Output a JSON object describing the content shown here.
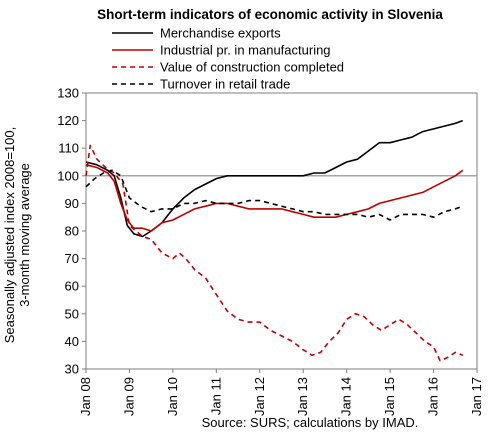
{
  "chart_data": {
    "type": "line",
    "title": "Short-term indicators of economic activity in Slovenia",
    "ylabel": "Seasonally adjusted index 2008=100, 3-month moving average",
    "ylabel_lines": [
      "Seasonally adjusted index 2008=100,",
      "3-month moving average"
    ],
    "xlabel": "",
    "source": "Source: SURS; calculations by IMAD.",
    "ylim": [
      30,
      130
    ],
    "yticks": [
      30,
      40,
      50,
      60,
      70,
      80,
      90,
      100,
      110,
      120,
      130
    ],
    "xlim": [
      2008.0,
      2017.0
    ],
    "xticks": [
      2008,
      2009,
      2010,
      2011,
      2012,
      2013,
      2014,
      2015,
      2016,
      2017
    ],
    "xtick_labels": [
      "Jan 08",
      "Jan 09",
      "Jan 10",
      "Jan 11",
      "Jan 12",
      "Jan 13",
      "Jan 14",
      "Jan 15",
      "Jan 16",
      "Jan 17"
    ],
    "reference_line": 100,
    "grid": false,
    "legend_position": "top",
    "series": [
      {
        "name": "Merchandise exports",
        "color": "#000000",
        "style": "solid",
        "x": [
          2008.0,
          2008.25,
          2008.5,
          2008.65,
          2008.8,
          2008.95,
          2009.1,
          2009.3,
          2009.5,
          2009.75,
          2010.0,
          2010.25,
          2010.5,
          2010.75,
          2011.0,
          2011.25,
          2011.5,
          2011.75,
          2012.0,
          2012.25,
          2012.5,
          2012.75,
          2013.0,
          2013.25,
          2013.5,
          2013.75,
          2014.0,
          2014.25,
          2014.5,
          2014.75,
          2015.0,
          2015.25,
          2015.5,
          2015.75,
          2016.0,
          2016.25,
          2016.5,
          2016.67
        ],
        "y": [
          105,
          104,
          102,
          100,
          92,
          82,
          79,
          78,
          80,
          83,
          88,
          92,
          95,
          97,
          99,
          100,
          100,
          100,
          100,
          100,
          100,
          100,
          100,
          101,
          101,
          103,
          105,
          106,
          109,
          112,
          112,
          113,
          114,
          116,
          117,
          118,
          119,
          120
        ]
      },
      {
        "name": "Industrial pr. in manufacturing",
        "color": "#c00000",
        "style": "solid",
        "x": [
          2008.0,
          2008.25,
          2008.5,
          2008.65,
          2008.8,
          2008.95,
          2009.1,
          2009.3,
          2009.5,
          2009.75,
          2010.0,
          2010.25,
          2010.5,
          2010.75,
          2011.0,
          2011.25,
          2011.5,
          2011.75,
          2012.0,
          2012.25,
          2012.5,
          2012.75,
          2013.0,
          2013.25,
          2013.5,
          2013.75,
          2014.0,
          2014.25,
          2014.5,
          2014.75,
          2015.0,
          2015.25,
          2015.5,
          2015.75,
          2016.0,
          2016.25,
          2016.5,
          2016.67
        ],
        "y": [
          104,
          103,
          101,
          98,
          90,
          84,
          81,
          81,
          80,
          83,
          84,
          86,
          88,
          89,
          90,
          90,
          89,
          88,
          88,
          88,
          88,
          87,
          86,
          85,
          85,
          85,
          86,
          87,
          88,
          90,
          91,
          92,
          93,
          94,
          96,
          98,
          100,
          102
        ]
      },
      {
        "name": "Value of construction completed",
        "color": "#c00000",
        "style": "dashed",
        "x": [
          2008.0,
          2008.1,
          2008.25,
          2008.45,
          2008.65,
          2008.85,
          2009.0,
          2009.15,
          2009.3,
          2009.5,
          2009.75,
          2010.0,
          2010.15,
          2010.3,
          2010.5,
          2010.75,
          2011.0,
          2011.25,
          2011.5,
          2011.75,
          2012.0,
          2012.25,
          2012.5,
          2012.75,
          2013.0,
          2013.2,
          2013.4,
          2013.6,
          2013.8,
          2014.0,
          2014.2,
          2014.4,
          2014.6,
          2014.8,
          2015.0,
          2015.2,
          2015.4,
          2015.6,
          2015.8,
          2016.0,
          2016.15,
          2016.3,
          2016.5,
          2016.67
        ],
        "y": [
          100,
          111,
          106,
          103,
          101,
          97,
          82,
          80,
          78,
          77,
          72,
          70,
          72,
          70,
          66,
          63,
          57,
          51,
          48,
          47,
          47,
          44,
          42,
          40,
          37,
          35,
          36,
          40,
          43,
          48,
          50,
          49,
          46,
          44,
          46,
          48,
          46,
          43,
          40,
          38,
          33,
          34,
          36,
          35
        ]
      },
      {
        "name": "Turnover in retail trade",
        "color": "#000000",
        "style": "dashed",
        "x": [
          2008.0,
          2008.2,
          2008.4,
          2008.6,
          2008.8,
          2009.0,
          2009.25,
          2009.5,
          2009.75,
          2010.0,
          2010.25,
          2010.5,
          2010.75,
          2011.0,
          2011.25,
          2011.5,
          2011.75,
          2012.0,
          2012.25,
          2012.5,
          2012.75,
          2013.0,
          2013.25,
          2013.5,
          2013.75,
          2014.0,
          2014.25,
          2014.5,
          2014.75,
          2015.0,
          2015.25,
          2015.5,
          2015.75,
          2016.0,
          2016.25,
          2016.5,
          2016.67
        ],
        "y": [
          96,
          99,
          101,
          102,
          100,
          92,
          89,
          87,
          88,
          88,
          90,
          90,
          91,
          90,
          90,
          90,
          91,
          91,
          90,
          89,
          88,
          87,
          87,
          86,
          86,
          86,
          86,
          85,
          86,
          84,
          86,
          86,
          86,
          85,
          87,
          88,
          89
        ]
      }
    ]
  }
}
